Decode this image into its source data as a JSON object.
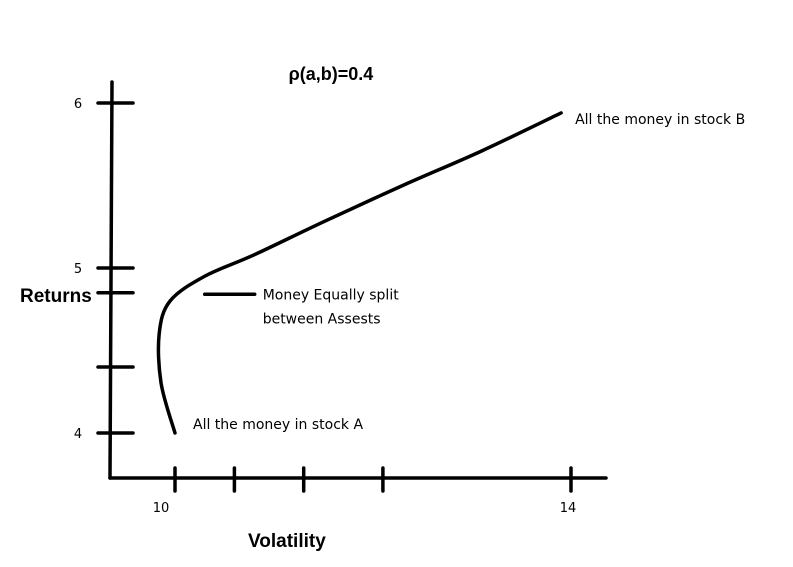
{
  "chart_data": {
    "type": "line",
    "title": "ρ(a,b)=0.4",
    "xlabel": "Volatility",
    "ylabel": "Returns",
    "x_ticks": [
      {
        "value": 10,
        "label": "10"
      },
      {
        "value": 10.6,
        "label": ""
      },
      {
        "value": 11.3,
        "label": ""
      },
      {
        "value": 12.1,
        "label": ""
      },
      {
        "value": 14,
        "label": "14"
      }
    ],
    "y_ticks": [
      {
        "value": 4,
        "label": "4"
      },
      {
        "value": 4.4,
        "label": ""
      },
      {
        "value": 4.85,
        "label": ""
      },
      {
        "value": 5,
        "label": "5"
      },
      {
        "value": 6,
        "label": "6"
      }
    ],
    "series": [
      {
        "name": "",
        "points": [
          {
            "x": 10,
            "y": 4.0
          },
          {
            "x": 9.86,
            "y": 4.3
          },
          {
            "x": 9.84,
            "y": 4.6
          },
          {
            "x": 9.95,
            "y": 4.8
          },
          {
            "x": 10.3,
            "y": 4.95
          },
          {
            "x": 10.8,
            "y": 5.08
          },
          {
            "x": 11.5,
            "y": 5.28
          },
          {
            "x": 12.3,
            "y": 5.5
          },
          {
            "x": 13.1,
            "y": 5.71
          },
          {
            "x": 13.9,
            "y": 5.94
          }
        ]
      }
    ],
    "annotations": [
      {
        "text": "All the money in stock A",
        "x": 10,
        "y": 4.0
      },
      {
        "text": "Money Equally split",
        "x": 10.3,
        "y": 4.95
      },
      {
        "text": "between Assests",
        "x": 10.3,
        "y": 4.95
      },
      {
        "text": "All the money in stock B",
        "x": 13.9,
        "y": 5.94
      }
    ],
    "grid": false
  }
}
